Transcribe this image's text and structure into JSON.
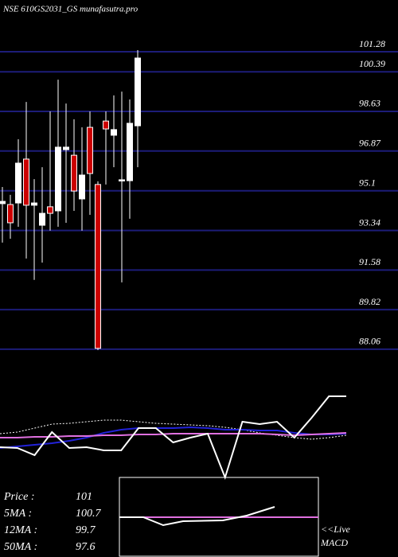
{
  "chart_data": [
    {
      "type": "candlestick",
      "title": "NSE 610GS2031_GS munafasutra.pro",
      "open": [
        94.53,
        94.49,
        94.56,
        96.51,
        94.46,
        93.57,
        94.39,
        94.21,
        96.93,
        96.68,
        94.74,
        97.92,
        95.38,
        98.2,
        97.57,
        95.55,
        95.55,
        97.99
      ],
      "high": [
        95.27,
        94.92,
        97.39,
        99.05,
        95.62,
        96.15,
        98.63,
        100.04,
        98.98,
        98.28,
        97.92,
        98.63,
        95.52,
        98.63,
        99.34,
        99.51,
        99.16,
        101.35
      ],
      "low": [
        92.8,
        92.97,
        93.5,
        92.09,
        91.14,
        91.91,
        93.33,
        93.5,
        93.68,
        94.21,
        93.33,
        94.03,
        88.02,
        95.38,
        96.15,
        91.03,
        93.86,
        96.15
      ],
      "close": [
        94.63,
        93.68,
        96.33,
        94.46,
        94.56,
        94.1,
        94.1,
        97.04,
        97.04,
        95.09,
        95.8,
        95.87,
        88.1,
        97.85,
        97.82,
        95.59,
        98.1,
        101.0
      ],
      "up_color": "#ffffff",
      "down_color": "#cc0000",
      "grid_color": "#1c1c78",
      "ylim": [
        88.02,
        103.58
      ],
      "yticks": [
        101.28,
        100.39,
        98.63,
        96.87,
        95.1,
        93.34,
        91.58,
        89.82,
        88.06
      ],
      "grid": true
    },
    {
      "type": "line",
      "ylim": [
        0,
        120
      ],
      "series": [
        {
          "color": "#ffffff",
          "dash": true,
          "values": [
            65,
            67,
            72,
            77,
            78,
            80,
            82,
            82,
            80,
            78,
            77,
            76,
            75,
            73,
            70,
            66,
            63,
            60,
            58,
            60,
            63
          ]
        },
        {
          "color": "#2222d8",
          "values": [
            47,
            49,
            51,
            53,
            56,
            60,
            66,
            70,
            72,
            72,
            72,
            73,
            72,
            70,
            70,
            69,
            69,
            66,
            64,
            64,
            65
          ]
        },
        {
          "color": "#e070e0",
          "values": [
            60,
            60,
            61,
            61,
            62,
            62,
            63,
            63,
            64,
            64,
            65,
            65,
            65,
            65,
            65,
            65,
            64,
            63,
            64,
            65,
            66
          ]
        },
        {
          "color": "#ffffff",
          "values": [
            48,
            47,
            38,
            67,
            47,
            48,
            44,
            44,
            72,
            72,
            54,
            60,
            65,
            10,
            80,
            77,
            80,
            60,
            85,
            112,
            112
          ]
        }
      ]
    },
    {
      "type": "line",
      "xlim": [
        0,
        100
      ],
      "ylim": [
        -50,
        50
      ],
      "x": [
        0,
        12,
        22,
        32,
        52,
        64,
        78,
        100
      ],
      "series": [
        {
          "color": "#e070e0",
          "values": [
            0,
            0,
            0,
            0,
            0,
            0,
            0,
            0
          ]
        },
        {
          "color": "#ffffff",
          "values": [
            0,
            0,
            -10,
            -5,
            -4,
            2,
            13,
            null
          ]
        }
      ],
      "annotations": [
        "<<Live",
        "MACD"
      ]
    }
  ],
  "summary": [
    {
      "label": "Price   :",
      "value": 101
    },
    {
      "label": "5MA :",
      "value": 100.7
    },
    {
      "label": "12MA :",
      "value": 99.7
    },
    {
      "label": "50MA :",
      "value": 97.6
    }
  ]
}
